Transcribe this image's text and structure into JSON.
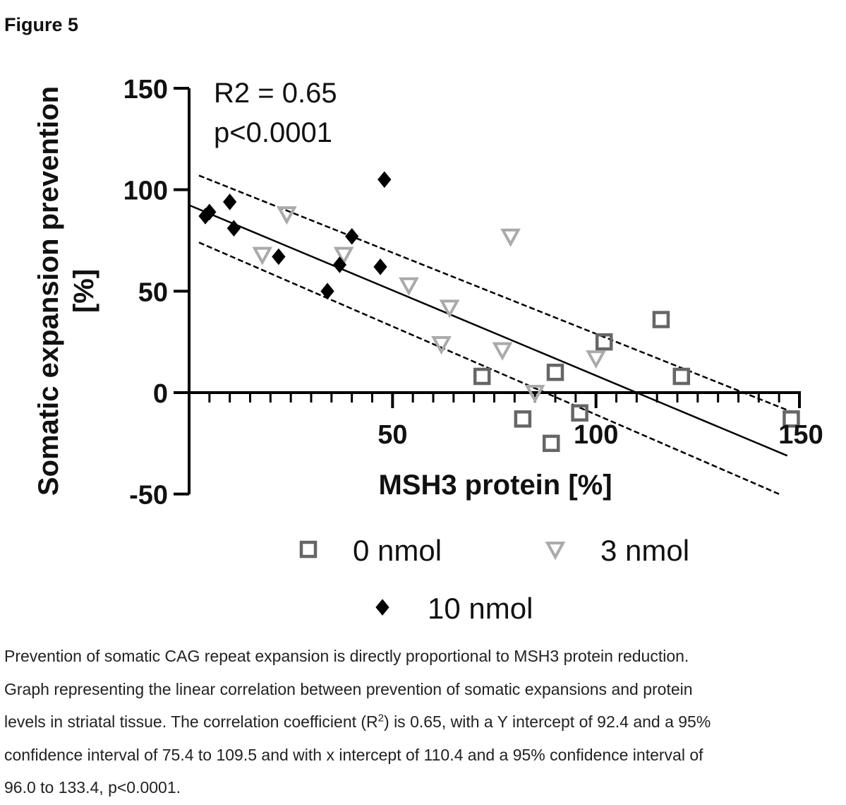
{
  "figure_label": "Figure 5",
  "chart_data": {
    "type": "scatter",
    "title": "",
    "xlabel": "MSH3 protein [%]",
    "ylabel_line1": "Somatic expansion prevention",
    "ylabel_line2": "[%]",
    "xlim": [
      0,
      150
    ],
    "ylim": [
      -50,
      150
    ],
    "x_ticks": [
      50,
      100,
      150
    ],
    "y_ticks": [
      150,
      100,
      50,
      0,
      -50
    ],
    "x_tick_labels": [
      "50",
      "100",
      "150"
    ],
    "y_tick_labels": [
      "150",
      "100",
      "50",
      "0",
      "-50"
    ],
    "annotation_r2": "R2 = 0.65",
    "annotation_p": "p<0.0001",
    "fit": {
      "slope": -0.84,
      "intercept": 92.4,
      "x_range": [
        0,
        147
      ]
    },
    "ci_upper": [
      [
        0,
        107
      ],
      [
        150,
        -11
      ]
    ],
    "ci_lower": [
      [
        0,
        74
      ],
      [
        145,
        -50
      ]
    ],
    "series": [
      {
        "name": "0 nmol",
        "marker": "square",
        "color": "#666666",
        "points": [
          [
            72,
            8
          ],
          [
            82,
            -13
          ],
          [
            90,
            10
          ],
          [
            89,
            -25
          ],
          [
            96,
            -10
          ],
          [
            102,
            25
          ],
          [
            116,
            36
          ],
          [
            121,
            8
          ],
          [
            148,
            -13
          ]
        ]
      },
      {
        "name": "3 nmol",
        "marker": "triangle-down",
        "color": "#aaaaaa",
        "points": [
          [
            24,
            88
          ],
          [
            18,
            68
          ],
          [
            38,
            68
          ],
          [
            54,
            53
          ],
          [
            64,
            42
          ],
          [
            62,
            24
          ],
          [
            77,
            21
          ],
          [
            85,
            0
          ],
          [
            79,
            77
          ],
          [
            100,
            17
          ]
        ]
      },
      {
        "name": "10 nmol",
        "marker": "diamond",
        "color": "#000000",
        "points": [
          [
            4,
            87
          ],
          [
            5,
            89
          ],
          [
            10,
            94
          ],
          [
            11,
            81
          ],
          [
            22,
            67
          ],
          [
            34,
            50
          ],
          [
            37,
            63
          ],
          [
            40,
            77
          ],
          [
            47,
            62
          ],
          [
            48,
            105
          ]
        ]
      }
    ]
  },
  "caption": {
    "line1": "Prevention of somatic CAG repeat expansion is directly proportional to MSH3 protein reduction.",
    "line2": "Graph representing the linear correlation between prevention of somatic expansions and protein",
    "line3_pre": "levels in striatal tissue. The correlation coefficient (R",
    "line3_sup": "2",
    "line3_post": ") is 0.65, with a Y intercept of 92.4 and a 95%",
    "line4": "confidence interval of 75.4 to 109.5 and with x intercept of 110.4 and a 95% confidence interval of",
    "line5": "96.0 to 133.4, p<0.0001."
  }
}
